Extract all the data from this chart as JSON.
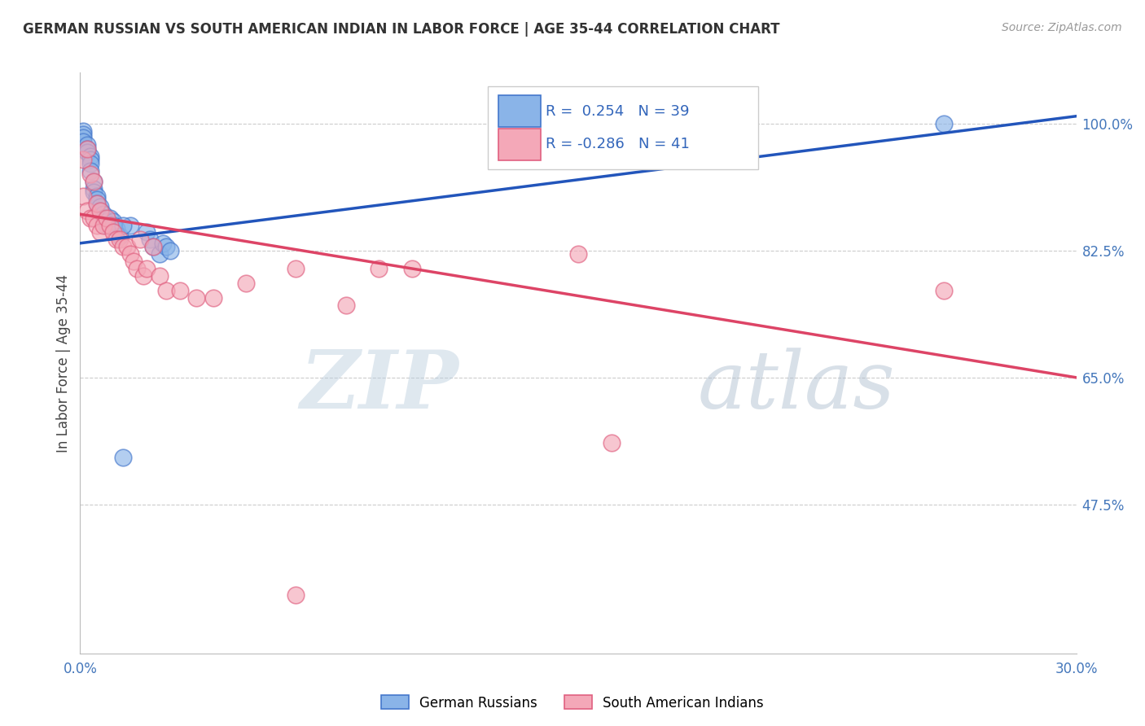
{
  "title": "GERMAN RUSSIAN VS SOUTH AMERICAN INDIAN IN LABOR FORCE | AGE 35-44 CORRELATION CHART",
  "source": "Source: ZipAtlas.com",
  "ylabel": "In Labor Force | Age 35-44",
  "xlim": [
    0.0,
    0.3
  ],
  "ylim": [
    0.27,
    1.07
  ],
  "xticks": [
    0.0,
    0.05,
    0.1,
    0.15,
    0.2,
    0.25,
    0.3
  ],
  "xticklabels": [
    "0.0%",
    "",
    "",
    "",
    "",
    "",
    "30.0%"
  ],
  "ytick_positions": [
    0.475,
    0.65,
    0.825,
    1.0
  ],
  "ytick_labels": [
    "47.5%",
    "65.0%",
    "82.5%",
    "100.0%"
  ],
  "blue_R": 0.254,
  "blue_N": 39,
  "pink_R": -0.286,
  "pink_N": 41,
  "blue_label": "German Russians",
  "pink_label": "South American Indians",
  "blue_color": "#8AB4E8",
  "pink_color": "#F4A8B8",
  "blue_edge_color": "#4477CC",
  "pink_edge_color": "#E06080",
  "blue_line_color": "#2255BB",
  "pink_line_color": "#DD4466",
  "watermark_zip": "ZIP",
  "watermark_atlas": "atlas",
  "blue_line_x0": 0.0,
  "blue_line_y0": 0.835,
  "blue_line_x1": 0.3,
  "blue_line_y1": 1.01,
  "pink_line_x0": 0.0,
  "pink_line_y0": 0.875,
  "pink_line_x1": 0.3,
  "pink_line_y1": 0.65,
  "blue_scatter_x": [
    0.001,
    0.001,
    0.001,
    0.001,
    0.002,
    0.002,
    0.002,
    0.003,
    0.003,
    0.003,
    0.003,
    0.004,
    0.004,
    0.004,
    0.005,
    0.005,
    0.005,
    0.006,
    0.006,
    0.007,
    0.007,
    0.008,
    0.008,
    0.009,
    0.01,
    0.01,
    0.011,
    0.012,
    0.013,
    0.015,
    0.02,
    0.021,
    0.022,
    0.024,
    0.025,
    0.026,
    0.027,
    0.26,
    0.013
  ],
  "blue_scatter_y": [
    0.99,
    0.985,
    0.98,
    0.975,
    0.97,
    0.965,
    0.96,
    0.955,
    0.95,
    0.945,
    0.935,
    0.92,
    0.91,
    0.905,
    0.9,
    0.895,
    0.89,
    0.885,
    0.88,
    0.875,
    0.87,
    0.865,
    0.86,
    0.87,
    0.865,
    0.86,
    0.855,
    0.845,
    0.54,
    0.86,
    0.85,
    0.84,
    0.83,
    0.82,
    0.835,
    0.83,
    0.825,
    1.0,
    0.86
  ],
  "pink_scatter_x": [
    0.001,
    0.001,
    0.002,
    0.002,
    0.003,
    0.003,
    0.004,
    0.004,
    0.005,
    0.005,
    0.006,
    0.006,
    0.007,
    0.008,
    0.009,
    0.01,
    0.011,
    0.012,
    0.013,
    0.014,
    0.015,
    0.016,
    0.017,
    0.018,
    0.019,
    0.02,
    0.022,
    0.024,
    0.026,
    0.03,
    0.035,
    0.04,
    0.05,
    0.065,
    0.08,
    0.09,
    0.1,
    0.15,
    0.16,
    0.26,
    0.065
  ],
  "pink_scatter_y": [
    0.95,
    0.9,
    0.965,
    0.88,
    0.93,
    0.87,
    0.92,
    0.87,
    0.89,
    0.86,
    0.88,
    0.85,
    0.86,
    0.87,
    0.86,
    0.85,
    0.84,
    0.84,
    0.83,
    0.83,
    0.82,
    0.81,
    0.8,
    0.84,
    0.79,
    0.8,
    0.83,
    0.79,
    0.77,
    0.77,
    0.76,
    0.76,
    0.78,
    0.8,
    0.75,
    0.8,
    0.8,
    0.82,
    0.56,
    0.77,
    0.35
  ]
}
